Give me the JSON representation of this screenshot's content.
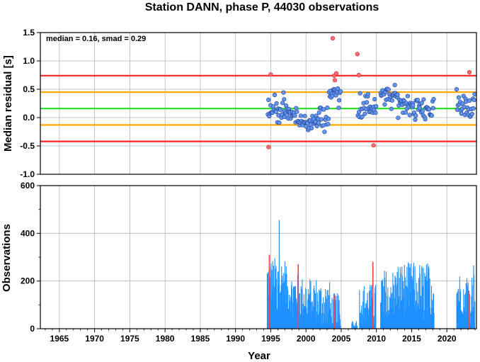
{
  "chart_data": [
    {
      "type": "scatter",
      "title": "Station DANN, phase P, 44030 observations",
      "annotation": "median = 0.16, smad = 0.29",
      "xlabel": "",
      "ylabel": "Median residual [s]",
      "xlim": [
        1962.3,
        2024.2
      ],
      "ylim": [
        -1.0,
        1.5
      ],
      "yticks": [
        "1.5",
        "1.0",
        "0.5",
        "0.0",
        "-0.5",
        "-1.0"
      ],
      "grid": true,
      "reference_lines": [
        {
          "value": 0.16,
          "color": "#22dd22"
        },
        {
          "value": 0.45,
          "color": "#ffaa00"
        },
        {
          "value": -0.13,
          "color": "#ffaa00"
        },
        {
          "value": 0.74,
          "color": "#ff2222"
        },
        {
          "value": -0.42,
          "color": "#ff2222"
        }
      ],
      "colors": {
        "inlier": "#6495ed",
        "outlier": "#ff6a6a"
      }
    },
    {
      "type": "bar",
      "title": "",
      "xlabel": "Year",
      "ylabel": "Observations",
      "xlim": [
        1962.3,
        2024.2
      ],
      "ylim": [
        0,
        600
      ],
      "yticks": [
        "600",
        "400",
        "200",
        "0"
      ],
      "xticks": [
        "1965",
        "1970",
        "1975",
        "1980",
        "1985",
        "1990",
        "1995",
        "2000",
        "2005",
        "2010",
        "2015",
        "2020"
      ],
      "grid": true,
      "colors": {
        "bar": "#1e90ff",
        "flag": "#ff4040"
      },
      "segments": [
        {
          "start": 1994.5,
          "end": 1997.2,
          "base": 200,
          "amp": 100,
          "extra": [
            [
              1996.2,
              455
            ]
          ]
        },
        {
          "start": 1997.2,
          "end": 1999.0,
          "base": 150,
          "amp": 80,
          "extra": []
        },
        {
          "start": 1999.0,
          "end": 2001.5,
          "base": 130,
          "amp": 90,
          "extra": []
        },
        {
          "start": 2001.5,
          "end": 2003.4,
          "base": 110,
          "amp": 90,
          "extra": []
        },
        {
          "start": 2003.4,
          "end": 2004.9,
          "base": 80,
          "amp": 70,
          "extra": []
        },
        {
          "start": 2006.5,
          "end": 2007.3,
          "base": 25,
          "amp": 20,
          "extra": []
        },
        {
          "start": 2007.6,
          "end": 2009.9,
          "base": 110,
          "amp": 80,
          "extra": []
        },
        {
          "start": 2010.6,
          "end": 2012.9,
          "base": 160,
          "amp": 90,
          "extra": []
        },
        {
          "start": 2012.9,
          "end": 2015.3,
          "base": 180,
          "amp": 100,
          "extra": []
        },
        {
          "start": 2015.3,
          "end": 2018.2,
          "base": 170,
          "amp": 110,
          "extra": []
        },
        {
          "start": 2021.4,
          "end": 2024.0,
          "base": 150,
          "amp": 90,
          "extra": [
            [
              2023.8,
              265
            ]
          ]
        }
      ],
      "flags": [
        [
          1994.8,
          310
        ],
        [
          1998.9,
          270
        ],
        [
          2004.1,
          140
        ],
        [
          2009.5,
          280
        ],
        [
          2023.1,
          160
        ]
      ]
    }
  ]
}
